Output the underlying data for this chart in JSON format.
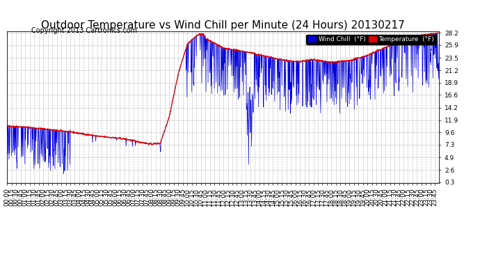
{
  "title": "Outdoor Temperature vs Wind Chill per Minute (24 Hours) 20130217",
  "copyright": "Copyright 2013 Cartronics.com",
  "legend_wind_chill": "Wind Chill  (°F)",
  "legend_temperature": "Temperature  (°F)",
  "yticks": [
    0.3,
    2.6,
    4.9,
    7.3,
    9.6,
    11.9,
    14.2,
    16.6,
    18.9,
    21.2,
    23.5,
    25.9,
    28.2
  ],
  "ylim_min": 0.3,
  "ylim_max": 28.2,
  "total_minutes": 1440,
  "background_color": "#ffffff",
  "grid_color": "#bbbbbb",
  "temp_color": "#dd0000",
  "wind_chill_color": "#0000dd",
  "title_fontsize": 11,
  "tick_fontsize": 6.5,
  "copyright_fontsize": 7
}
